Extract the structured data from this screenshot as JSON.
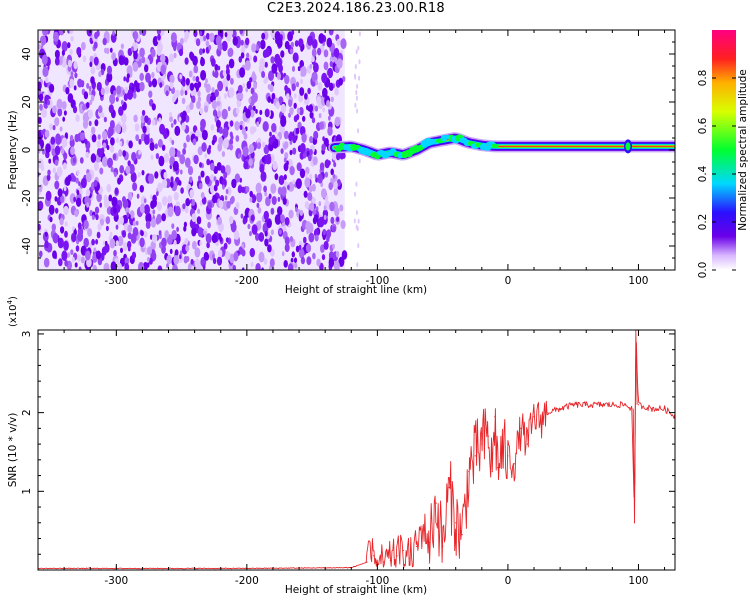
{
  "title": "C2E3.2024.186.23.00.R18",
  "colors": {
    "snr_line": "#e8262a",
    "noise_purple": "#6a00e8",
    "axis": "#000000"
  },
  "chart_data": [
    {
      "type": "heatmap",
      "name": "spectrogram",
      "xlabel": "Height of straight line (km)",
      "ylabel": "Frequency (Hz)",
      "xlim": [
        -360,
        128
      ],
      "ylim": [
        -50,
        50
      ],
      "xticks": [
        -300,
        -200,
        -100,
        0,
        100
      ],
      "xtick_labels": [
        "-300",
        "-200",
        "-100",
        "0",
        "100"
      ],
      "yticks": [
        -40,
        -20,
        0,
        20,
        40
      ],
      "ytick_labels": [
        "-40",
        "-20",
        "0",
        "20",
        "40"
      ],
      "noise_region_x": [
        -360,
        -125
      ],
      "signal_region_x": [
        -133,
        128
      ],
      "signal_ridge": {
        "x": [
          -133,
          -120,
          -110,
          -100,
          -90,
          -80,
          -70,
          -60,
          -50,
          -40,
          -30,
          -20,
          -10,
          0,
          20,
          50,
          90,
          128
        ],
        "freq": [
          1,
          1.5,
          0,
          -2,
          -1,
          -2,
          0,
          3,
          4,
          5,
          3,
          2,
          1.5,
          1.5,
          1.5,
          1.5,
          1.5,
          1.5
        ]
      },
      "colorbar": {
        "label": "Normalized spectral amplitude",
        "range": [
          0,
          1
        ],
        "ticks": [
          0.0,
          0.2,
          0.4,
          0.6,
          0.8
        ],
        "tick_labels": [
          "0.0",
          "0.2",
          "0.4",
          "0.6",
          "0.8"
        ]
      }
    },
    {
      "type": "line",
      "name": "snr",
      "xlabel": "Height of straight line (km)",
      "ylabel": "SNR (10 * v/v)",
      "yscale_label": "(x10",
      "yscale_exp": "4",
      "yscale_close": ")",
      "xlim": [
        -360,
        128
      ],
      "ylim": [
        0,
        3.05
      ],
      "xticks": [
        -300,
        -200,
        -100,
        0,
        100
      ],
      "xtick_labels": [
        "-300",
        "-200",
        "-100",
        "0",
        "100"
      ],
      "yticks": [
        1,
        2,
        3
      ],
      "ytick_labels": [
        "1",
        "2",
        "3"
      ],
      "series": [
        {
          "x": [
            -360,
            -300,
            -200,
            -120,
            -108,
            -103,
            -100,
            -95,
            -90,
            -85,
            -80,
            -75,
            -70,
            -65,
            -60,
            -55,
            -50,
            -45,
            -40,
            -35,
            -30,
            -25,
            -20,
            -15,
            -12,
            -10,
            -8,
            -5,
            0,
            5,
            10,
            15,
            20,
            25,
            30,
            40,
            50,
            60,
            70,
            80,
            90,
            95,
            97,
            98,
            100,
            110,
            120,
            128
          ],
          "y": [
            0.02,
            0.02,
            0.02,
            0.03,
            0.1,
            0.18,
            0.08,
            0.1,
            0.12,
            0.18,
            0.25,
            0.15,
            0.3,
            0.55,
            0.35,
            0.85,
            0.3,
            1.05,
            0.6,
            0.45,
            1.25,
            1.45,
            1.6,
            1.7,
            1.25,
            1.95,
            1.3,
            1.5,
            1.45,
            1.35,
            1.8,
            1.6,
            1.95,
            1.9,
            2.0,
            2.05,
            2.1,
            2.1,
            2.1,
            2.1,
            2.1,
            2.05,
            0.6,
            3.05,
            2.1,
            2.05,
            2.05,
            1.95
          ]
        }
      ]
    }
  ]
}
